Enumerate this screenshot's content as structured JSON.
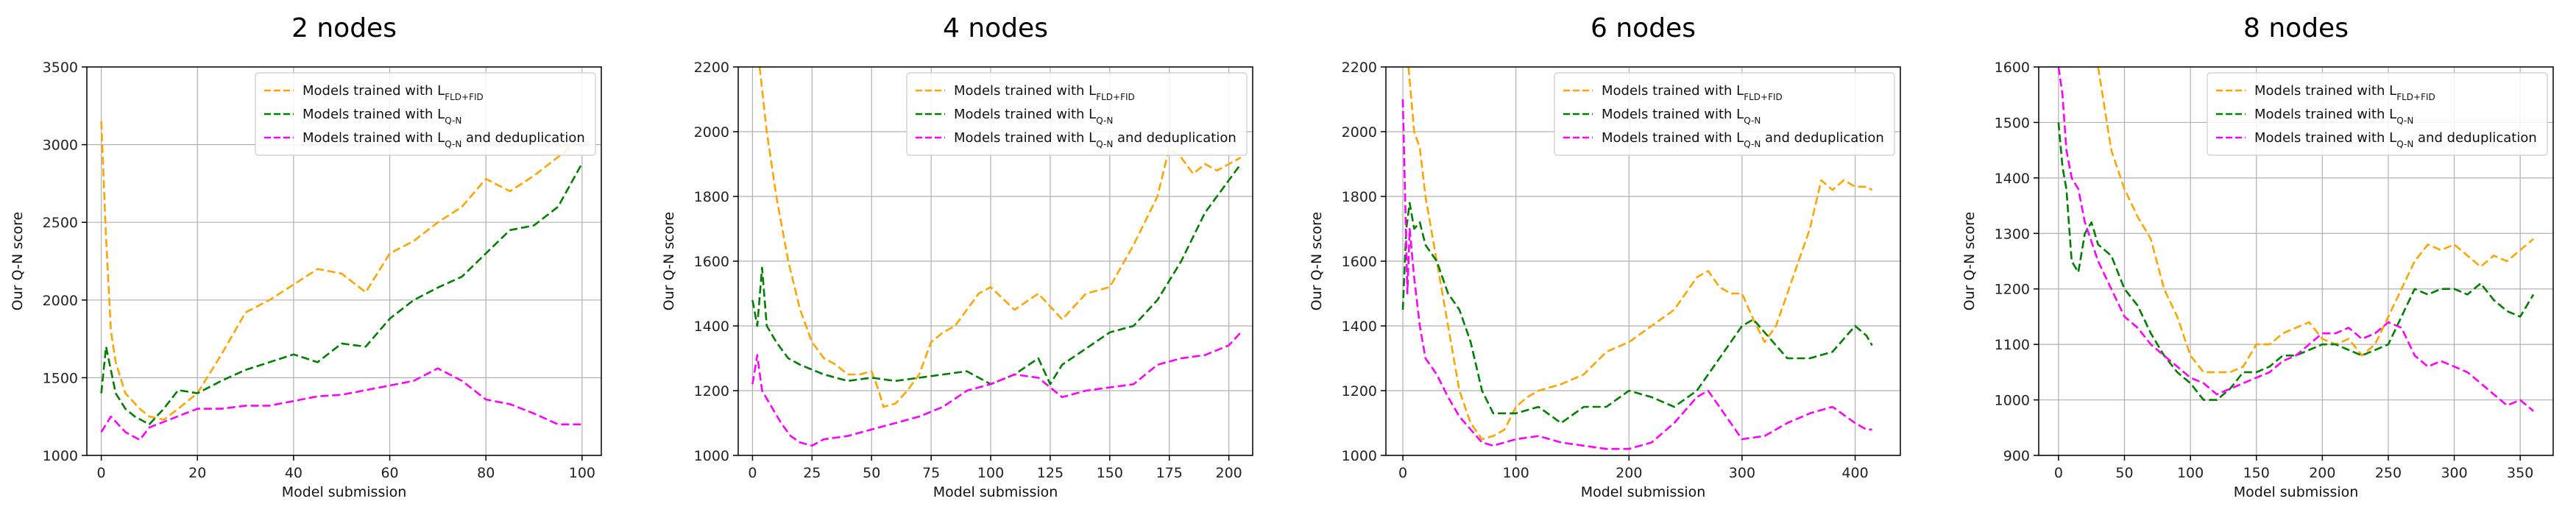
{
  "chart_data": [
    {
      "type": "line",
      "title": "2 nodes",
      "xlabel": "Model submission",
      "ylabel": "Our Q-N score",
      "xlim": [
        -3,
        104
      ],
      "ylim": [
        1000,
        3500
      ],
      "xticks": [
        0,
        20,
        40,
        60,
        80,
        100
      ],
      "yticks": [
        1000,
        1500,
        2000,
        2500,
        3000,
        3500
      ],
      "grid": true,
      "legend": "top-right",
      "series": [
        {
          "name": "Models trained with L_{FLD+FID}",
          "color": "#FFA500",
          "x": [
            0,
            1,
            2,
            3,
            5,
            8,
            10,
            13,
            16,
            20,
            25,
            30,
            35,
            40,
            45,
            50,
            55,
            60,
            65,
            70,
            75,
            80,
            85,
            90,
            95,
            100
          ],
          "y": [
            3150,
            2400,
            1800,
            1600,
            1400,
            1300,
            1250,
            1230,
            1300,
            1400,
            1650,
            1920,
            2000,
            2100,
            2200,
            2170,
            2050,
            2300,
            2380,
            2500,
            2600,
            2780,
            2700,
            2800,
            2920,
            3050
          ]
        },
        {
          "name": "Models trained with L_{Q-N}",
          "color": "#008000",
          "x": [
            0,
            1,
            3,
            5,
            7,
            10,
            13,
            16,
            20,
            25,
            30,
            35,
            40,
            45,
            50,
            55,
            60,
            65,
            70,
            75,
            80,
            85,
            90,
            95,
            100
          ],
          "y": [
            1400,
            1700,
            1400,
            1300,
            1250,
            1200,
            1300,
            1420,
            1400,
            1480,
            1550,
            1600,
            1650,
            1600,
            1720,
            1700,
            1880,
            2000,
            2080,
            2150,
            2300,
            2450,
            2480,
            2600,
            2880
          ]
        },
        {
          "name": "Models trained with L_{Q-N} and deduplication",
          "color": "#FF00FF",
          "x": [
            0,
            2,
            5,
            8,
            10,
            15,
            20,
            25,
            30,
            35,
            40,
            45,
            50,
            55,
            60,
            65,
            70,
            75,
            80,
            85,
            90,
            95,
            100
          ],
          "y": [
            1150,
            1250,
            1150,
            1100,
            1180,
            1240,
            1300,
            1300,
            1320,
            1320,
            1350,
            1380,
            1390,
            1420,
            1450,
            1480,
            1560,
            1480,
            1360,
            1330,
            1270,
            1200,
            1200
          ]
        }
      ]
    },
    {
      "type": "line",
      "title": "4 nodes",
      "xlabel": "Model submission",
      "ylabel": "Our Q-N score",
      "xlim": [
        -6,
        210
      ],
      "ylim": [
        1000,
        2200
      ],
      "xticks": [
        0,
        25,
        50,
        75,
        100,
        125,
        150,
        175,
        200
      ],
      "yticks": [
        1000,
        1200,
        1400,
        1600,
        1800,
        2000,
        2200
      ],
      "grid": true,
      "legend": "top-right",
      "series": [
        {
          "name": "Models trained with L_{FLD+FID}",
          "color": "#FFA500",
          "x": [
            3,
            6,
            10,
            15,
            20,
            25,
            30,
            35,
            40,
            45,
            50,
            53,
            55,
            60,
            65,
            70,
            75,
            80,
            85,
            90,
            95,
            100,
            110,
            120,
            130,
            140,
            150,
            160,
            170,
            175,
            180,
            185,
            190,
            195,
            200,
            205
          ],
          "y": [
            2200,
            2000,
            1800,
            1600,
            1450,
            1350,
            1300,
            1280,
            1250,
            1250,
            1260,
            1200,
            1150,
            1160,
            1200,
            1250,
            1350,
            1380,
            1400,
            1450,
            1500,
            1520,
            1450,
            1500,
            1420,
            1500,
            1520,
            1650,
            1800,
            1950,
            1920,
            1870,
            1900,
            1880,
            1900,
            1920
          ]
        },
        {
          "name": "Models trained with L_{Q-N}",
          "color": "#008000",
          "x": [
            0,
            2,
            4,
            6,
            10,
            15,
            20,
            30,
            40,
            50,
            60,
            70,
            80,
            90,
            100,
            110,
            120,
            125,
            130,
            140,
            150,
            160,
            170,
            180,
            190,
            200,
            205
          ],
          "y": [
            1480,
            1400,
            1580,
            1400,
            1350,
            1300,
            1280,
            1250,
            1230,
            1240,
            1230,
            1240,
            1250,
            1260,
            1220,
            1250,
            1300,
            1220,
            1280,
            1330,
            1380,
            1400,
            1480,
            1600,
            1750,
            1850,
            1900
          ]
        },
        {
          "name": "Models trained with L_{Q-N} and deduplication",
          "color": "#FF00FF",
          "x": [
            0,
            2,
            4,
            8,
            12,
            16,
            20,
            25,
            30,
            40,
            50,
            60,
            70,
            80,
            90,
            100,
            110,
            120,
            130,
            140,
            150,
            160,
            170,
            180,
            190,
            200,
            205
          ],
          "y": [
            1220,
            1310,
            1200,
            1150,
            1100,
            1060,
            1040,
            1030,
            1050,
            1060,
            1080,
            1100,
            1120,
            1150,
            1200,
            1220,
            1250,
            1240,
            1180,
            1200,
            1210,
            1220,
            1280,
            1300,
            1310,
            1340,
            1380
          ]
        }
      ]
    },
    {
      "type": "line",
      "title": "6 nodes",
      "xlabel": "Model submission",
      "ylabel": "Our Q-N score",
      "xlim": [
        -15,
        440
      ],
      "ylim": [
        1000,
        2200
      ],
      "xticks": [
        0,
        100,
        200,
        300,
        400
      ],
      "yticks": [
        1000,
        1200,
        1400,
        1600,
        1800,
        2000,
        2200
      ],
      "grid": true,
      "legend": "top-right",
      "series": [
        {
          "name": "Models trained with L_{FLD+FID}",
          "color": "#FFA500",
          "x": [
            5,
            10,
            15,
            20,
            30,
            40,
            50,
            60,
            70,
            80,
            90,
            100,
            110,
            120,
            140,
            160,
            180,
            200,
            220,
            240,
            260,
            270,
            280,
            290,
            300,
            310,
            320,
            330,
            340,
            350,
            360,
            370,
            380,
            390,
            400,
            410,
            415
          ],
          "y": [
            2200,
            2000,
            1950,
            1800,
            1600,
            1400,
            1200,
            1100,
            1050,
            1060,
            1080,
            1150,
            1180,
            1200,
            1220,
            1250,
            1320,
            1350,
            1400,
            1450,
            1550,
            1570,
            1520,
            1500,
            1500,
            1420,
            1350,
            1400,
            1500,
            1600,
            1700,
            1850,
            1820,
            1850,
            1830,
            1830,
            1820
          ]
        },
        {
          "name": "Models trained with L_{Q-N}",
          "color": "#008000",
          "x": [
            0,
            3,
            6,
            10,
            15,
            20,
            30,
            40,
            50,
            60,
            70,
            80,
            90,
            100,
            120,
            140,
            160,
            180,
            200,
            220,
            240,
            260,
            280,
            300,
            310,
            320,
            340,
            360,
            380,
            400,
            410,
            415
          ],
          "y": [
            1450,
            1700,
            1780,
            1700,
            1720,
            1650,
            1600,
            1500,
            1450,
            1350,
            1200,
            1130,
            1130,
            1130,
            1150,
            1100,
            1150,
            1150,
            1200,
            1180,
            1150,
            1200,
            1300,
            1400,
            1420,
            1380,
            1300,
            1300,
            1320,
            1400,
            1370,
            1340
          ]
        },
        {
          "name": "Models trained with L_{Q-N} and deduplication",
          "color": "#FF00FF",
          "x": [
            0,
            2,
            4,
            6,
            10,
            15,
            20,
            30,
            40,
            50,
            60,
            70,
            80,
            90,
            100,
            120,
            140,
            160,
            180,
            200,
            220,
            240,
            260,
            270,
            280,
            300,
            320,
            340,
            360,
            380,
            400,
            410,
            415
          ],
          "y": [
            2100,
            1800,
            1500,
            1700,
            1550,
            1400,
            1300,
            1250,
            1180,
            1120,
            1080,
            1040,
            1030,
            1040,
            1050,
            1060,
            1040,
            1030,
            1020,
            1020,
            1040,
            1100,
            1180,
            1200,
            1150,
            1050,
            1060,
            1100,
            1130,
            1150,
            1100,
            1080,
            1080
          ]
        }
      ]
    },
    {
      "type": "line",
      "title": "8 nodes",
      "xlabel": "Model submission",
      "ylabel": "Our Q-N score",
      "xlim": [
        -15,
        375
      ],
      "ylim": [
        900,
        1600
      ],
      "xticks": [
        0,
        50,
        100,
        150,
        200,
        250,
        300,
        350
      ],
      "yticks": [
        900,
        1000,
        1100,
        1200,
        1300,
        1400,
        1500,
        1600
      ],
      "grid": true,
      "legend": "top-right",
      "series": [
        {
          "name": "Models trained with L_{FLD+FID}",
          "color": "#FFA500",
          "x": [
            30,
            40,
            50,
            60,
            70,
            80,
            90,
            100,
            110,
            120,
            130,
            140,
            150,
            160,
            170,
            180,
            190,
            200,
            210,
            220,
            230,
            240,
            250,
            260,
            270,
            280,
            290,
            300,
            310,
            320,
            330,
            340,
            350,
            360
          ],
          "y": [
            1600,
            1450,
            1380,
            1330,
            1290,
            1200,
            1150,
            1080,
            1050,
            1050,
            1050,
            1060,
            1100,
            1100,
            1120,
            1130,
            1140,
            1110,
            1100,
            1110,
            1080,
            1100,
            1150,
            1200,
            1250,
            1280,
            1270,
            1280,
            1260,
            1240,
            1260,
            1250,
            1270,
            1290
          ]
        },
        {
          "name": "Models trained with L_{Q-N}",
          "color": "#008000",
          "x": [
            0,
            3,
            6,
            10,
            15,
            20,
            25,
            30,
            40,
            50,
            60,
            70,
            80,
            90,
            100,
            110,
            120,
            130,
            140,
            150,
            160,
            170,
            180,
            190,
            200,
            210,
            220,
            230,
            240,
            250,
            260,
            270,
            280,
            290,
            300,
            310,
            320,
            330,
            340,
            350,
            360
          ],
          "y": [
            1500,
            1420,
            1380,
            1250,
            1230,
            1300,
            1320,
            1280,
            1260,
            1200,
            1170,
            1120,
            1080,
            1050,
            1030,
            1000,
            1000,
            1020,
            1050,
            1050,
            1060,
            1080,
            1080,
            1090,
            1100,
            1100,
            1090,
            1080,
            1090,
            1100,
            1150,
            1200,
            1190,
            1200,
            1200,
            1190,
            1210,
            1180,
            1160,
            1150,
            1190
          ]
        },
        {
          "name": "Models trained with L_{Q-N} and deduplication",
          "color": "#FF00FF",
          "x": [
            0,
            3,
            6,
            10,
            15,
            20,
            30,
            40,
            50,
            60,
            70,
            80,
            90,
            100,
            110,
            120,
            130,
            140,
            150,
            160,
            170,
            180,
            190,
            200,
            210,
            220,
            230,
            240,
            250,
            260,
            270,
            280,
            290,
            300,
            310,
            320,
            330,
            340,
            350,
            360
          ],
          "y": [
            1600,
            1550,
            1450,
            1400,
            1380,
            1320,
            1250,
            1200,
            1150,
            1130,
            1100,
            1080,
            1060,
            1040,
            1030,
            1010,
            1020,
            1030,
            1040,
            1050,
            1070,
            1080,
            1100,
            1120,
            1120,
            1130,
            1110,
            1120,
            1140,
            1130,
            1080,
            1060,
            1070,
            1060,
            1050,
            1030,
            1010,
            990,
            1000,
            980
          ]
        }
      ]
    }
  ]
}
